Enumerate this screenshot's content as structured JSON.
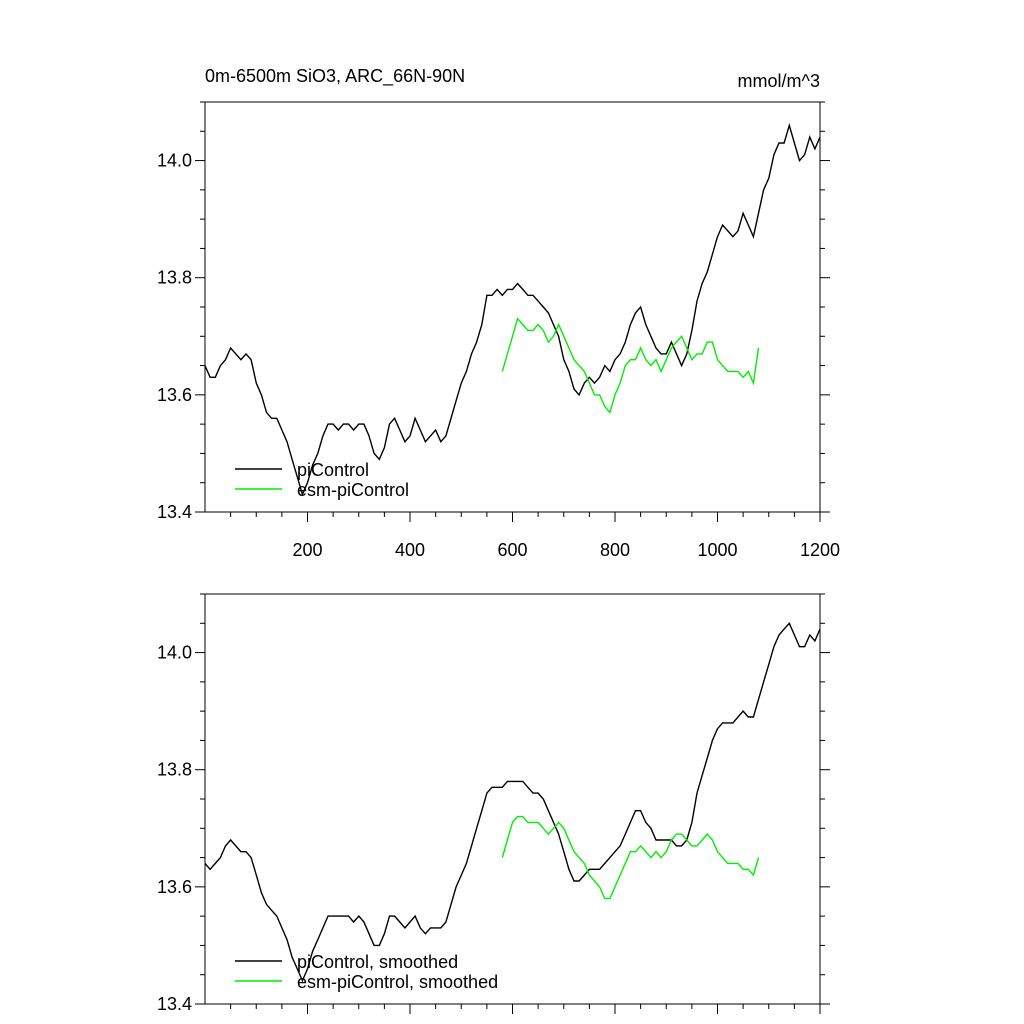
{
  "chart_data": [
    {
      "type": "line",
      "title": "0m-6500m SiO3, ARC_66N-90N",
      "units": "mmol/m^3",
      "xlim": [
        0,
        1200
      ],
      "ylim": [
        13.4,
        14.1
      ],
      "xticks": [
        200,
        400,
        600,
        800,
        1000,
        1200
      ],
      "xtick_labels": [
        "200",
        "400",
        "600",
        "800",
        "1000",
        "1200"
      ],
      "yticks": [
        13.4,
        13.6,
        13.8,
        14.0
      ],
      "ytick_labels": [
        "13.4",
        "13.6",
        "13.8",
        "14.0"
      ],
      "legend_position": "bottom-left",
      "series": [
        {
          "name": "piControl",
          "color": "#000000",
          "x": [
            0,
            10,
            20,
            30,
            40,
            50,
            60,
            70,
            80,
            90,
            100,
            110,
            120,
            130,
            140,
            150,
            160,
            170,
            180,
            190,
            200,
            210,
            220,
            230,
            240,
            250,
            260,
            270,
            280,
            290,
            300,
            310,
            320,
            330,
            340,
            350,
            360,
            370,
            380,
            390,
            400,
            410,
            420,
            430,
            440,
            450,
            460,
            470,
            480,
            490,
            500,
            510,
            520,
            530,
            540,
            550,
            560,
            570,
            580,
            590,
            600,
            610,
            620,
            630,
            640,
            650,
            660,
            670,
            680,
            690,
            700,
            710,
            720,
            730,
            740,
            750,
            760,
            770,
            780,
            790,
            800,
            810,
            820,
            830,
            840,
            850,
            860,
            870,
            880,
            890,
            900,
            910,
            920,
            930,
            940,
            950,
            960,
            970,
            980,
            990,
            1000,
            1010,
            1020,
            1030,
            1040,
            1050,
            1060,
            1070,
            1080,
            1090,
            1100,
            1110,
            1120,
            1130,
            1140,
            1150,
            1160,
            1170,
            1180,
            1190,
            1200
          ],
          "y": [
            13.65,
            13.63,
            13.63,
            13.65,
            13.66,
            13.68,
            13.67,
            13.66,
            13.67,
            13.66,
            13.62,
            13.6,
            13.57,
            13.56,
            13.56,
            13.54,
            13.52,
            13.49,
            13.46,
            13.43,
            13.45,
            13.48,
            13.5,
            13.53,
            13.55,
            13.55,
            13.54,
            13.55,
            13.55,
            13.54,
            13.55,
            13.55,
            13.53,
            13.5,
            13.49,
            13.51,
            13.55,
            13.56,
            13.54,
            13.52,
            13.53,
            13.56,
            13.54,
            13.52,
            13.53,
            13.54,
            13.52,
            13.53,
            13.56,
            13.59,
            13.62,
            13.64,
            13.67,
            13.69,
            13.72,
            13.77,
            13.77,
            13.78,
            13.77,
            13.78,
            13.78,
            13.79,
            13.78,
            13.77,
            13.77,
            13.76,
            13.75,
            13.74,
            13.72,
            13.7,
            13.66,
            13.64,
            13.61,
            13.6,
            13.62,
            13.63,
            13.62,
            13.63,
            13.65,
            13.64,
            13.66,
            13.67,
            13.69,
            13.72,
            13.74,
            13.75,
            13.72,
            13.7,
            13.68,
            13.67,
            13.67,
            13.69,
            13.67,
            13.65,
            13.67,
            13.71,
            13.76,
            13.79,
            13.81,
            13.84,
            13.87,
            13.89,
            13.88,
            13.87,
            13.88,
            13.91,
            13.89,
            13.87,
            13.91,
            13.95,
            13.97,
            14.01,
            14.03,
            14.03,
            14.06,
            14.03,
            14.0,
            14.01,
            14.04,
            14.02,
            14.04
          ]
        },
        {
          "name": "esm-piControl",
          "color": "#00ee00",
          "x": [
            580,
            590,
            600,
            610,
            620,
            630,
            640,
            650,
            660,
            670,
            680,
            690,
            700,
            710,
            720,
            730,
            740,
            750,
            760,
            770,
            780,
            790,
            800,
            810,
            820,
            830,
            840,
            850,
            860,
            870,
            880,
            890,
            900,
            910,
            920,
            930,
            940,
            950,
            960,
            970,
            980,
            990,
            1000,
            1010,
            1020,
            1030,
            1040,
            1050,
            1060,
            1070,
            1080
          ],
          "y": [
            13.64,
            13.67,
            13.7,
            13.73,
            13.72,
            13.71,
            13.71,
            13.72,
            13.71,
            13.69,
            13.7,
            13.72,
            13.7,
            13.68,
            13.66,
            13.65,
            13.64,
            13.62,
            13.6,
            13.6,
            13.58,
            13.57,
            13.6,
            13.62,
            13.65,
            13.66,
            13.66,
            13.68,
            13.66,
            13.65,
            13.66,
            13.64,
            13.66,
            13.68,
            13.69,
            13.7,
            13.68,
            13.66,
            13.67,
            13.67,
            13.69,
            13.69,
            13.66,
            13.65,
            13.64,
            13.64,
            13.64,
            13.63,
            13.64,
            13.62,
            13.68
          ]
        }
      ]
    },
    {
      "type": "line",
      "title": "",
      "xlim": [
        0,
        1200
      ],
      "ylim": [
        13.4,
        14.1
      ],
      "yticks": [
        13.4,
        13.6,
        13.8,
        14.0
      ],
      "ytick_labels": [
        "13.4",
        "13.6",
        "13.8",
        "14.0"
      ],
      "legend_position": "bottom-left",
      "series": [
        {
          "name": "piControl, smoothed",
          "color": "#000000",
          "x": [
            0,
            10,
            20,
            30,
            40,
            50,
            60,
            70,
            80,
            90,
            100,
            110,
            120,
            130,
            140,
            150,
            160,
            170,
            180,
            190,
            200,
            210,
            220,
            230,
            240,
            250,
            260,
            270,
            280,
            290,
            300,
            310,
            320,
            330,
            340,
            350,
            360,
            370,
            380,
            390,
            400,
            410,
            420,
            430,
            440,
            450,
            460,
            470,
            480,
            490,
            500,
            510,
            520,
            530,
            540,
            550,
            560,
            570,
            580,
            590,
            600,
            610,
            620,
            630,
            640,
            650,
            660,
            670,
            680,
            690,
            700,
            710,
            720,
            730,
            740,
            750,
            760,
            770,
            780,
            790,
            800,
            810,
            820,
            830,
            840,
            850,
            860,
            870,
            880,
            890,
            900,
            910,
            920,
            930,
            940,
            950,
            960,
            970,
            980,
            990,
            1000,
            1010,
            1020,
            1030,
            1040,
            1050,
            1060,
            1070,
            1080,
            1090,
            1100,
            1110,
            1120,
            1130,
            1140,
            1150,
            1160,
            1170,
            1180,
            1190,
            1200
          ],
          "y": [
            13.64,
            13.63,
            13.64,
            13.65,
            13.67,
            13.68,
            13.67,
            13.66,
            13.66,
            13.65,
            13.62,
            13.59,
            13.57,
            13.56,
            13.55,
            13.53,
            13.51,
            13.48,
            13.46,
            13.44,
            13.46,
            13.49,
            13.51,
            13.53,
            13.55,
            13.55,
            13.55,
            13.55,
            13.55,
            13.54,
            13.55,
            13.54,
            13.52,
            13.5,
            13.5,
            13.52,
            13.55,
            13.55,
            13.54,
            13.53,
            13.54,
            13.55,
            13.53,
            13.52,
            13.53,
            13.53,
            13.53,
            13.54,
            13.57,
            13.6,
            13.62,
            13.64,
            13.67,
            13.7,
            13.73,
            13.76,
            13.77,
            13.77,
            13.77,
            13.78,
            13.78,
            13.78,
            13.78,
            13.77,
            13.76,
            13.76,
            13.75,
            13.73,
            13.71,
            13.69,
            13.66,
            13.63,
            13.61,
            13.61,
            13.62,
            13.63,
            13.63,
            13.63,
            13.64,
            13.65,
            13.66,
            13.67,
            13.69,
            13.71,
            13.73,
            13.73,
            13.71,
            13.7,
            13.68,
            13.68,
            13.68,
            13.68,
            13.67,
            13.67,
            13.68,
            13.71,
            13.76,
            13.79,
            13.82,
            13.85,
            13.87,
            13.88,
            13.88,
            13.88,
            13.89,
            13.9,
            13.89,
            13.89,
            13.92,
            13.95,
            13.98,
            14.01,
            14.03,
            14.04,
            14.05,
            14.03,
            14.01,
            14.01,
            14.03,
            14.02,
            14.04
          ]
        },
        {
          "name": "esm-piControl, smoothed",
          "color": "#00ee00",
          "x": [
            580,
            590,
            600,
            610,
            620,
            630,
            640,
            650,
            660,
            670,
            680,
            690,
            700,
            710,
            720,
            730,
            740,
            750,
            760,
            770,
            780,
            790,
            800,
            810,
            820,
            830,
            840,
            850,
            860,
            870,
            880,
            890,
            900,
            910,
            920,
            930,
            940,
            950,
            960,
            970,
            980,
            990,
            1000,
            1010,
            1020,
            1030,
            1040,
            1050,
            1060,
            1070,
            1080
          ],
          "y": [
            13.65,
            13.68,
            13.71,
            13.72,
            13.72,
            13.71,
            13.71,
            13.71,
            13.7,
            13.69,
            13.7,
            13.71,
            13.7,
            13.68,
            13.66,
            13.65,
            13.64,
            13.62,
            13.61,
            13.6,
            13.58,
            13.58,
            13.6,
            13.62,
            13.64,
            13.66,
            13.66,
            13.67,
            13.66,
            13.65,
            13.66,
            13.65,
            13.66,
            13.68,
            13.69,
            13.69,
            13.68,
            13.67,
            13.67,
            13.68,
            13.69,
            13.68,
            13.66,
            13.65,
            13.64,
            13.64,
            13.64,
            13.63,
            13.63,
            13.62,
            13.65
          ]
        }
      ]
    }
  ]
}
